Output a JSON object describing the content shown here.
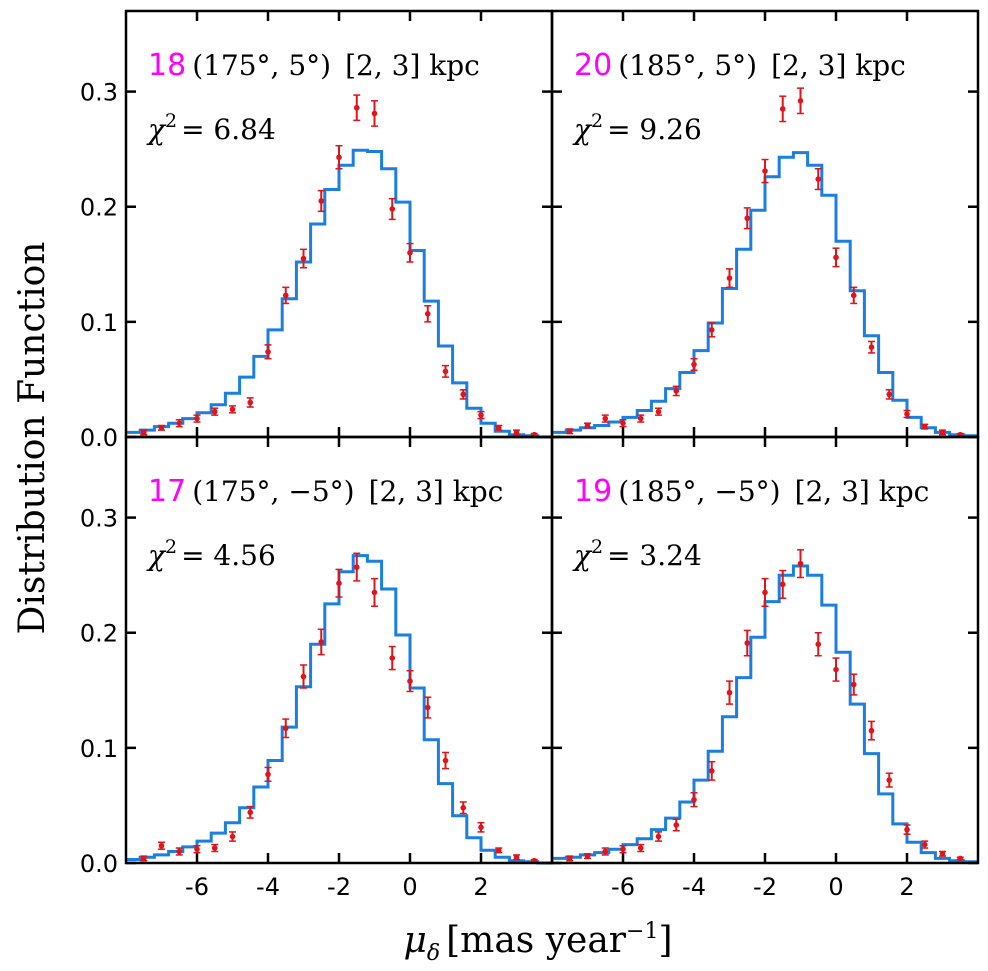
{
  "colors": {
    "model": "#1a7fe0",
    "data": "#e0141a",
    "panel_number": "#ff00ff",
    "axes": "#000000"
  },
  "figure": {
    "ylabel": "Distribution Function",
    "xlabel_main": "μ",
    "xlabel_sub": "δ",
    "xlabel_unit": "[mas year",
    "xlabel_exp": "−1",
    "xlabel_close": "]"
  },
  "chart_data": [
    {
      "type": "line",
      "panel": "top-left",
      "number": "18",
      "coord": "(175°, 5°)",
      "range": "[2, 3] kpc",
      "chi_label": "χ",
      "chi_sup": "2",
      "chi_value": "= 6.84",
      "xlim": [
        -8,
        4
      ],
      "ylim": [
        0,
        0.37
      ],
      "xticks": [
        -6,
        -4,
        -2,
        0,
        2
      ],
      "yticks": [
        0.0,
        0.1,
        0.2,
        0.3
      ],
      "ytick_labels": [
        "0.0",
        "0.1",
        "0.2",
        "0.3"
      ],
      "hist_edges": [
        -8.0,
        -7.6,
        -7.2,
        -6.8,
        -6.4,
        -6.0,
        -5.6,
        -5.2,
        -4.8,
        -4.4,
        -4.0,
        -3.6,
        -3.2,
        -2.8,
        -2.4,
        -2.0,
        -1.6,
        -1.2,
        -0.8,
        -0.4,
        0.0,
        0.4,
        0.8,
        1.2,
        1.6,
        2.0,
        2.4,
        2.8,
        3.2,
        3.6,
        4.0
      ],
      "hist_values": [
        0.004,
        0.006,
        0.009,
        0.012,
        0.016,
        0.021,
        0.028,
        0.038,
        0.052,
        0.07,
        0.093,
        0.12,
        0.152,
        0.185,
        0.215,
        0.236,
        0.249,
        0.248,
        0.233,
        0.204,
        0.162,
        0.118,
        0.079,
        0.047,
        0.025,
        0.012,
        0.005,
        0.002,
        0.001,
        0.0
      ],
      "points_x": [
        -7.5,
        -7.0,
        -6.5,
        -6.0,
        -5.5,
        -5.0,
        -4.5,
        -4.0,
        -3.5,
        -3.0,
        -2.5,
        -2.0,
        -1.5,
        -1.0,
        -0.5,
        0.0,
        0.5,
        1.0,
        1.5,
        2.0,
        2.5,
        3.0,
        3.5
      ],
      "points_y": [
        0.004,
        0.008,
        0.012,
        0.016,
        0.022,
        0.024,
        0.03,
        0.074,
        0.123,
        0.155,
        0.205,
        0.243,
        0.286,
        0.281,
        0.198,
        0.16,
        0.107,
        0.057,
        0.037,
        0.019,
        0.008,
        0.004,
        0.002
      ],
      "errors": [
        0.002,
        0.002,
        0.003,
        0.003,
        0.003,
        0.003,
        0.004,
        0.006,
        0.007,
        0.008,
        0.009,
        0.01,
        0.011,
        0.011,
        0.009,
        0.008,
        0.007,
        0.005,
        0.004,
        0.003,
        0.002,
        0.002,
        0.001
      ]
    },
    {
      "type": "line",
      "panel": "top-right",
      "number": "20",
      "coord": "(185°, 5°)",
      "range": "[2, 3] kpc",
      "chi_label": "χ",
      "chi_sup": "2",
      "chi_value": "= 9.26",
      "xlim": [
        -8,
        4
      ],
      "ylim": [
        0,
        0.37
      ],
      "xticks": [
        -6,
        -4,
        -2,
        0,
        2
      ],
      "yticks": [
        0.0,
        0.1,
        0.2,
        0.3
      ],
      "ytick_labels": [
        "0.0",
        "0.1",
        "0.2",
        "0.3"
      ],
      "hist_edges": [
        -8.0,
        -7.6,
        -7.2,
        -6.8,
        -6.4,
        -6.0,
        -5.6,
        -5.2,
        -4.8,
        -4.4,
        -4.0,
        -3.6,
        -3.2,
        -2.8,
        -2.4,
        -2.0,
        -1.6,
        -1.2,
        -0.8,
        -0.4,
        0.0,
        0.4,
        0.8,
        1.2,
        1.6,
        2.0,
        2.4,
        2.8,
        3.2,
        3.6,
        4.0
      ],
      "hist_values": [
        0.004,
        0.006,
        0.008,
        0.01,
        0.013,
        0.017,
        0.023,
        0.031,
        0.042,
        0.056,
        0.075,
        0.099,
        0.129,
        0.163,
        0.197,
        0.226,
        0.243,
        0.247,
        0.236,
        0.21,
        0.17,
        0.127,
        0.088,
        0.056,
        0.032,
        0.017,
        0.008,
        0.004,
        0.002,
        0.001
      ],
      "points_x": [
        -7.5,
        -7.0,
        -6.5,
        -6.0,
        -5.5,
        -5.0,
        -4.5,
        -4.0,
        -3.5,
        -3.0,
        -2.5,
        -2.0,
        -1.5,
        -1.0,
        -0.5,
        0.0,
        0.5,
        1.0,
        1.5,
        2.0,
        2.5,
        3.0,
        3.5
      ],
      "points_y": [
        0.005,
        0.01,
        0.016,
        0.012,
        0.016,
        0.022,
        0.04,
        0.063,
        0.093,
        0.138,
        0.19,
        0.231,
        0.285,
        0.292,
        0.224,
        0.156,
        0.123,
        0.078,
        0.037,
        0.02,
        0.009,
        0.004,
        0.002
      ],
      "errors": [
        0.002,
        0.002,
        0.003,
        0.003,
        0.003,
        0.003,
        0.004,
        0.005,
        0.006,
        0.008,
        0.009,
        0.01,
        0.011,
        0.011,
        0.009,
        0.008,
        0.007,
        0.005,
        0.004,
        0.003,
        0.002,
        0.002,
        0.001
      ]
    },
    {
      "type": "line",
      "panel": "bottom-left",
      "number": "17",
      "coord": "(175°, −5°)",
      "range": "[2, 3] kpc",
      "chi_label": "χ",
      "chi_sup": "2",
      "chi_value": "= 4.56",
      "xlim": [
        -8,
        4
      ],
      "ylim": [
        0,
        0.37
      ],
      "xticks": [
        -6,
        -4,
        -2,
        0,
        2
      ],
      "yticks": [
        0.0,
        0.1,
        0.2,
        0.3
      ],
      "ytick_labels": [
        "0.0",
        "0.1",
        "0.2",
        "0.3"
      ],
      "hist_edges": [
        -8.0,
        -7.6,
        -7.2,
        -6.8,
        -6.4,
        -6.0,
        -5.6,
        -5.2,
        -4.8,
        -4.4,
        -4.0,
        -3.6,
        -3.2,
        -2.8,
        -2.4,
        -2.0,
        -1.6,
        -1.2,
        -0.8,
        -0.4,
        0.0,
        0.4,
        0.8,
        1.2,
        1.6,
        2.0,
        2.4,
        2.8,
        3.2,
        3.6,
        4.0
      ],
      "hist_values": [
        0.003,
        0.005,
        0.007,
        0.01,
        0.014,
        0.019,
        0.026,
        0.035,
        0.048,
        0.066,
        0.089,
        0.118,
        0.153,
        0.19,
        0.225,
        0.253,
        0.267,
        0.262,
        0.238,
        0.198,
        0.152,
        0.107,
        0.069,
        0.041,
        0.022,
        0.011,
        0.005,
        0.002,
        0.001,
        0.0
      ],
      "points_x": [
        -7.5,
        -7.0,
        -6.5,
        -6.0,
        -5.5,
        -5.0,
        -4.5,
        -4.0,
        -3.5,
        -3.0,
        -2.5,
        -2.0,
        -1.5,
        -1.0,
        -0.5,
        0.0,
        0.5,
        1.0,
        1.5,
        2.0,
        2.5,
        3.0,
        3.5
      ],
      "points_y": [
        0.004,
        0.015,
        0.01,
        0.012,
        0.013,
        0.023,
        0.044,
        0.077,
        0.117,
        0.162,
        0.192,
        0.243,
        0.257,
        0.235,
        0.178,
        0.158,
        0.135,
        0.089,
        0.048,
        0.031,
        0.011,
        0.005,
        0.002
      ],
      "errors": [
        0.002,
        0.003,
        0.003,
        0.003,
        0.003,
        0.004,
        0.005,
        0.006,
        0.008,
        0.01,
        0.011,
        0.012,
        0.012,
        0.012,
        0.01,
        0.009,
        0.009,
        0.007,
        0.005,
        0.004,
        0.002,
        0.002,
        0.001
      ]
    },
    {
      "type": "line",
      "panel": "bottom-right",
      "number": "19",
      "coord": "(185°, −5°)",
      "range": "[2, 3] kpc",
      "chi_label": "χ",
      "chi_sup": "2",
      "chi_value": "= 3.24",
      "xlim": [
        -8,
        4
      ],
      "ylim": [
        0,
        0.37
      ],
      "xticks": [
        -6,
        -4,
        -2,
        0,
        2
      ],
      "yticks": [
        0.0,
        0.1,
        0.2,
        0.3
      ],
      "ytick_labels": [
        "0.0",
        "0.1",
        "0.2",
        "0.3"
      ],
      "hist_edges": [
        -8.0,
        -7.6,
        -7.2,
        -6.8,
        -6.4,
        -6.0,
        -5.6,
        -5.2,
        -4.8,
        -4.4,
        -4.0,
        -3.6,
        -3.2,
        -2.8,
        -2.4,
        -2.0,
        -1.6,
        -1.2,
        -0.8,
        -0.4,
        0.0,
        0.4,
        0.8,
        1.2,
        1.6,
        2.0,
        2.4,
        2.8,
        3.2,
        3.6,
        4.0
      ],
      "hist_values": [
        0.004,
        0.005,
        0.007,
        0.009,
        0.012,
        0.016,
        0.021,
        0.029,
        0.039,
        0.053,
        0.072,
        0.097,
        0.127,
        0.161,
        0.196,
        0.227,
        0.25,
        0.258,
        0.25,
        0.224,
        0.183,
        0.138,
        0.095,
        0.06,
        0.034,
        0.018,
        0.009,
        0.004,
        0.002,
        0.001
      ],
      "points_x": [
        -7.5,
        -7.0,
        -6.5,
        -6.0,
        -5.5,
        -5.0,
        -4.5,
        -4.0,
        -3.5,
        -3.0,
        -2.5,
        -2.0,
        -1.5,
        -1.0,
        -0.5,
        0.0,
        0.5,
        1.0,
        1.5,
        2.0,
        2.5,
        3.0,
        3.5
      ],
      "points_y": [
        0.004,
        0.006,
        0.01,
        0.012,
        0.013,
        0.023,
        0.033,
        0.055,
        0.08,
        0.148,
        0.191,
        0.235,
        0.242,
        0.26,
        0.19,
        0.168,
        0.155,
        0.115,
        0.072,
        0.029,
        0.016,
        0.008,
        0.004
      ],
      "errors": [
        0.002,
        0.002,
        0.003,
        0.003,
        0.003,
        0.004,
        0.005,
        0.006,
        0.008,
        0.01,
        0.011,
        0.012,
        0.012,
        0.012,
        0.01,
        0.01,
        0.009,
        0.008,
        0.006,
        0.004,
        0.003,
        0.002,
        0.001
      ]
    }
  ]
}
